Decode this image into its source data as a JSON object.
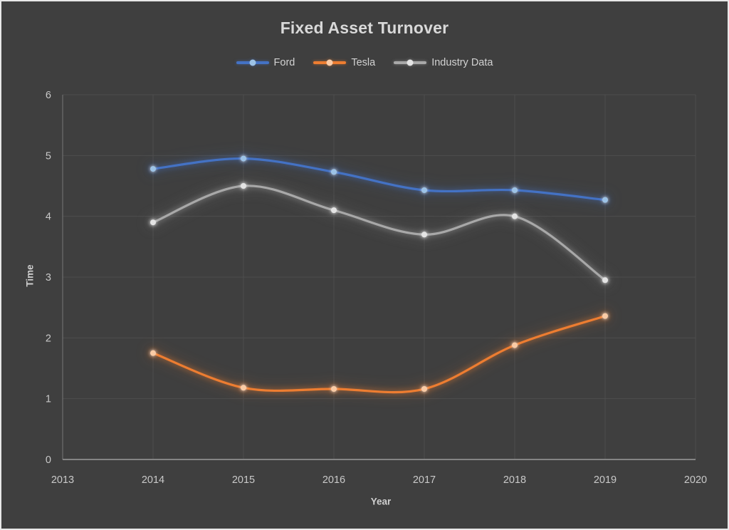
{
  "window": {
    "background": "#3F3F3F",
    "frame_border": "#E8E8E8"
  },
  "chart_data": {
    "type": "line",
    "title": "Fixed Asset Turnover",
    "xlabel": "Year",
    "ylabel": "Time",
    "legend_position": "top",
    "grid": true,
    "smooth_lines": true,
    "x_axis": {
      "ticks": [
        "2013",
        "2014",
        "2015",
        "2016",
        "2017",
        "2018",
        "2019",
        "2020"
      ],
      "range": [
        2013,
        2020
      ]
    },
    "y_axis": {
      "ticks": [
        "0",
        "1",
        "2",
        "3",
        "4",
        "5",
        "6"
      ],
      "range": [
        0,
        6
      ]
    },
    "x": [
      2014,
      2015,
      2016,
      2017,
      2018,
      2019
    ],
    "series": [
      {
        "name": "Ford",
        "color": "#4472C4",
        "marker_color": "#9DC3E6",
        "values": [
          4.78,
          4.95,
          4.73,
          4.43,
          4.43,
          4.27
        ]
      },
      {
        "name": "Tesla",
        "color": "#ED7D31",
        "marker_color": "#F9CBA6",
        "values": [
          1.75,
          1.18,
          1.16,
          1.16,
          1.88,
          2.36
        ]
      },
      {
        "name": "Industry Data",
        "color": "#A8A8A8",
        "marker_color": "#E4E4E4",
        "values": [
          3.9,
          4.5,
          4.1,
          3.7,
          4.0,
          2.95
        ]
      }
    ],
    "colors": {
      "background": "#3F3F3F",
      "gridline": "#4E4E4E",
      "plot_border": "#545454",
      "y_axis_line": "#6E6E6E",
      "x_axis_line": "#9C9C9C",
      "tick_text": "#C9C9C9",
      "title_text": "#D9D9D9"
    }
  }
}
